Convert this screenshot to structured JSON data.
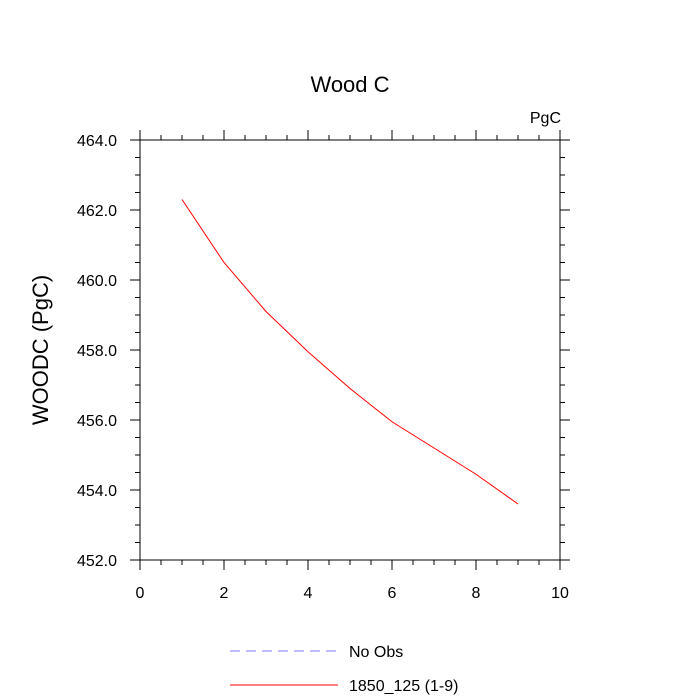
{
  "chart_data": {
    "type": "line",
    "title": "Wood C",
    "units_label": "PgC",
    "xlabel": "",
    "ylabel": "WOODC  (PgC)",
    "xlim": [
      0,
      10
    ],
    "ylim": [
      452.0,
      464.0
    ],
    "x_ticks": [
      0,
      2,
      4,
      6,
      8,
      10
    ],
    "x_tick_labels": [
      "0",
      "2",
      "4",
      "6",
      "8",
      "10"
    ],
    "y_ticks": [
      452.0,
      454.0,
      456.0,
      458.0,
      460.0,
      462.0,
      464.0
    ],
    "y_tick_labels": [
      "452.0",
      "454.0",
      "456.0",
      "458.0",
      "460.0",
      "462.0",
      "464.0"
    ],
    "grid": false,
    "legend_position": "bottom",
    "series": [
      {
        "name": "No Obs",
        "color": "#7b7bff",
        "dash": "dashed",
        "x": [],
        "y": []
      },
      {
        "name": "1850_125 (1-9)",
        "color": "#ff0000",
        "dash": "solid",
        "x": [
          1,
          2,
          3,
          4,
          5,
          6,
          7,
          8,
          9
        ],
        "y": [
          462.3,
          460.5,
          459.1,
          457.95,
          456.9,
          455.95,
          455.2,
          454.45,
          453.6
        ]
      }
    ]
  }
}
